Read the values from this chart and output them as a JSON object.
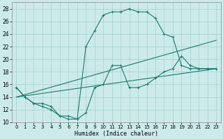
{
  "xlabel": "Humidex (Indice chaleur)",
  "bg_color": "#cceaea",
  "grid_color": "#aad4d4",
  "line_color": "#1a7a6e",
  "xlim": [
    -0.5,
    23.5
  ],
  "ylim": [
    10,
    29
  ],
  "xticks": [
    0,
    1,
    2,
    3,
    4,
    5,
    6,
    7,
    8,
    9,
    10,
    11,
    12,
    13,
    14,
    15,
    16,
    17,
    18,
    19,
    20,
    21,
    22,
    23
  ],
  "yticks": [
    10,
    12,
    14,
    16,
    18,
    20,
    22,
    24,
    26,
    28
  ],
  "lines": [
    {
      "x": [
        0,
        1,
        2,
        3,
        4,
        5,
        6,
        7,
        8,
        9,
        10,
        11,
        12,
        13,
        14,
        15,
        16,
        17,
        18,
        19,
        20,
        21,
        22,
        23
      ],
      "y": [
        15.5,
        14,
        13,
        13,
        12.5,
        11,
        11,
        10.5,
        11.5,
        15.5,
        16,
        19,
        19,
        15.5,
        15.5,
        16,
        17,
        18,
        18.5,
        20.5,
        19,
        18.5,
        18.5,
        18.5
      ],
      "marker": true
    },
    {
      "x": [
        0,
        1,
        2,
        3,
        4,
        5,
        6,
        7,
        8,
        9,
        10,
        11,
        12,
        13,
        14,
        15,
        16,
        17,
        18,
        19,
        20,
        21,
        22,
        23
      ],
      "y": [
        15.5,
        14,
        13,
        12.5,
        12,
        11,
        10.5,
        10.5,
        22,
        24.5,
        27,
        27.5,
        27.5,
        28,
        27.5,
        27.5,
        26.5,
        24,
        23.5,
        19,
        18.5,
        18.5,
        18.5,
        18.5
      ],
      "marker": true
    },
    {
      "x": [
        0,
        23
      ],
      "y": [
        14,
        23
      ],
      "marker": false
    },
    {
      "x": [
        0,
        23
      ],
      "y": [
        14,
        18.5
      ],
      "marker": false
    }
  ]
}
